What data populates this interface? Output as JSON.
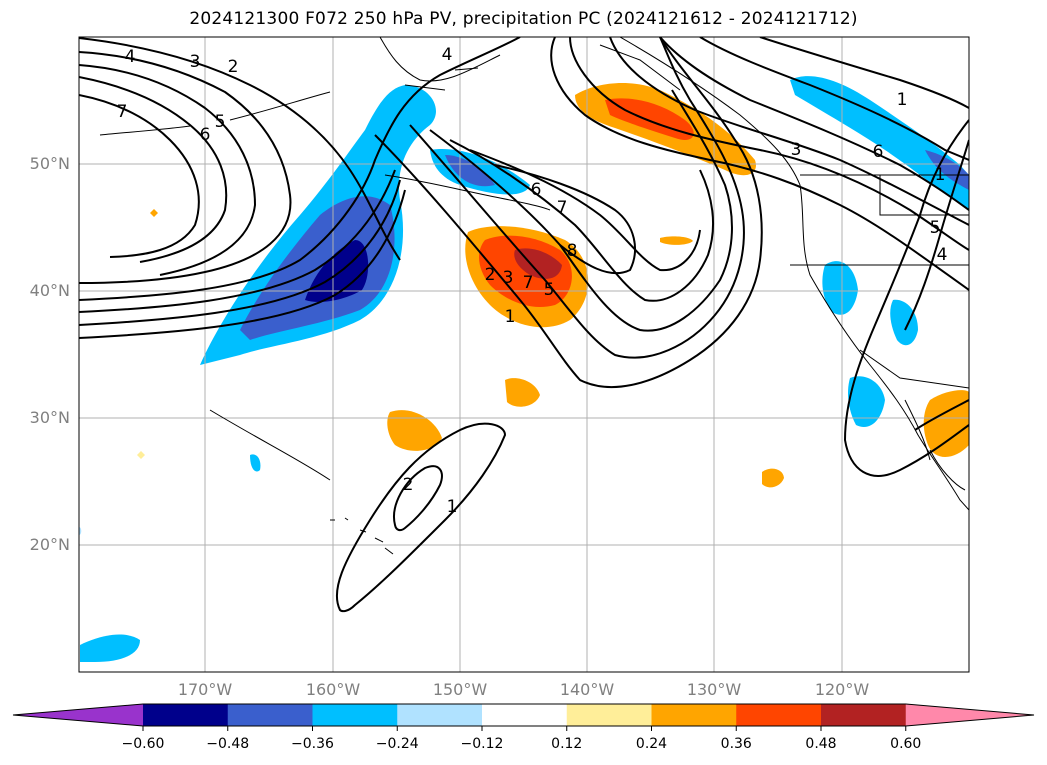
{
  "title": "2024121300 F072 250 hPa PV, precipitation PC (2024121612 - 2024121712)",
  "map": {
    "lat_labels": [
      {
        "text": "50°N",
        "lat": 50
      },
      {
        "text": "40°N",
        "lat": 40
      },
      {
        "text": "30°N",
        "lat": 30
      },
      {
        "text": "20°N",
        "lat": 20
      }
    ],
    "lon_labels": [
      {
        "text": "170°W",
        "lon": -170
      },
      {
        "text": "160°W",
        "lon": -160
      },
      {
        "text": "150°W",
        "lon": -150
      },
      {
        "text": "140°W",
        "lon": -140
      },
      {
        "text": "130°W",
        "lon": -130
      },
      {
        "text": "120°W",
        "lon": -120
      }
    ],
    "lon_range": [
      -180,
      -110
    ],
    "lat_range": [
      10,
      60
    ],
    "pv_contour_labels": [
      "1",
      "2",
      "3",
      "4",
      "5",
      "6",
      "7",
      "8"
    ]
  },
  "colorbar": {
    "ticks": [
      "−0.60",
      "−0.48",
      "−0.36",
      "−0.24",
      "−0.12",
      "0.12",
      "0.24",
      "0.36",
      "0.48",
      "0.60"
    ],
    "colors": [
      "#9933cc",
      "#00008b",
      "#3a5fcd",
      "#00bfff",
      "#b0e2ff",
      "#ffffff",
      "#ffee99",
      "#ffa500",
      "#ff4500",
      "#b22222",
      "#ff88aa"
    ]
  }
}
